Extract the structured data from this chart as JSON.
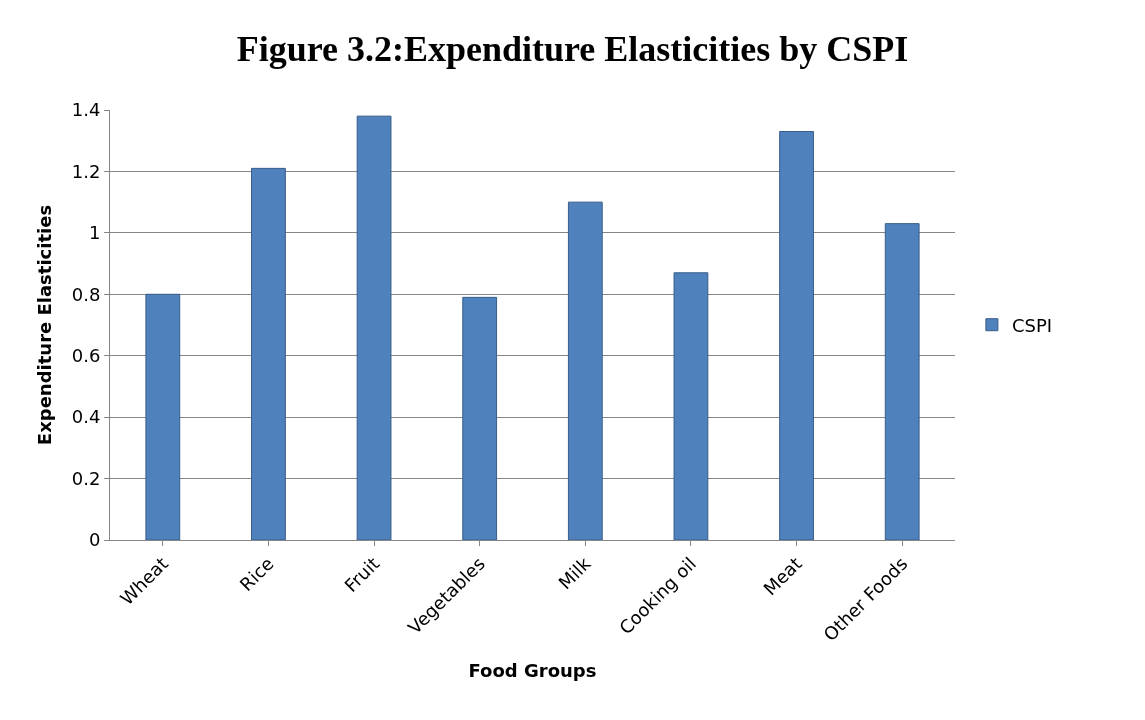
{
  "chart_data": {
    "type": "bar",
    "title": "Figure 3.2:Expenditure Elasticities by CSPI",
    "xlabel": "Food Groups",
    "ylabel": "Expenditure Elasticities",
    "categories": [
      "Wheat",
      "Rice",
      "Fruit",
      "Vegetables",
      "Milk",
      "Cooking oil",
      "Meat",
      "Other Foods"
    ],
    "series": [
      {
        "name": "CSPI",
        "color": "#4f81bd",
        "values": [
          0.8,
          1.21,
          1.38,
          0.79,
          1.1,
          0.87,
          1.33,
          1.03
        ]
      }
    ],
    "ylim": [
      0,
      1.4
    ],
    "yticks": [
      0,
      0.2,
      0.4,
      0.6,
      0.8,
      1,
      1.2,
      1.4
    ],
    "grid": "y",
    "legend": "right"
  }
}
